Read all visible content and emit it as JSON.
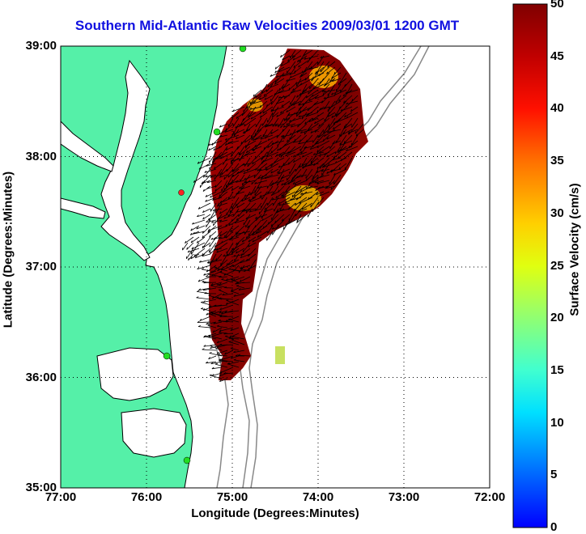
{
  "title": "Southern Mid-Atlantic Raw Velocities 2009/03/01 1200 GMT",
  "axes": {
    "xlabel": "Longitude (Degrees:Minutes)",
    "ylabel": "Latitude (Degrees:Minutes)",
    "xticks": [
      "77:00",
      "76:00",
      "75:00",
      "74:00",
      "73:00",
      "72:00"
    ],
    "yticks": [
      "39:00",
      "38:00",
      "37:00",
      "36:00",
      "35:00"
    ],
    "xlim": [
      -77,
      -72
    ],
    "ylim": [
      35,
      39
    ]
  },
  "colorbar": {
    "label": "Surface Velocity (cm/s)",
    "ticks": [
      "50",
      "45",
      "40",
      "35",
      "30",
      "25",
      "20",
      "15",
      "10",
      "5",
      "0"
    ],
    "range": [
      0,
      50
    ]
  },
  "colors": {
    "land": "#55f0a8",
    "water": "#ffffff",
    "title": "#1010e0",
    "station_dot": "#22dd22",
    "station_dot_red": "#ff2222",
    "bathymetry": "#888888"
  }
}
